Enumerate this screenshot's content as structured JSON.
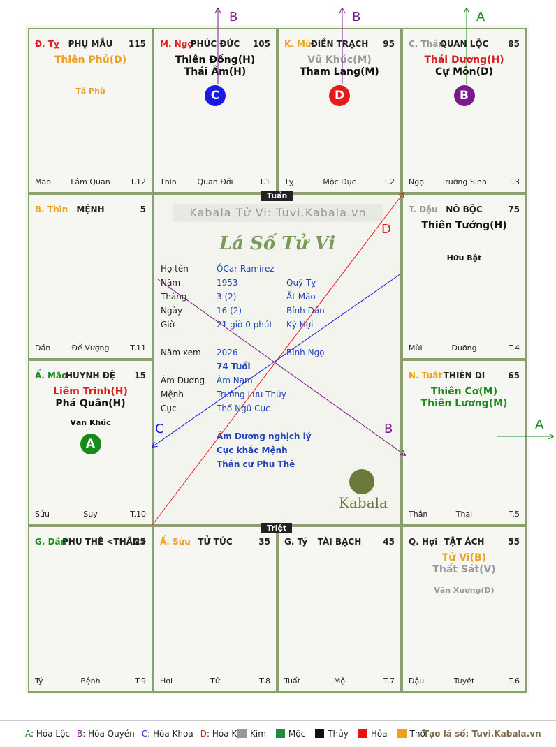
{
  "palaces": [
    {
      "id": "ty",
      "can": "Đ. Tỵ",
      "can_color": "#d81f1f",
      "name": "PHỤ MẪU",
      "num": "115",
      "stars": [
        {
          "t": "Thiên Phủ(D)",
          "c": "#f0a020"
        }
      ],
      "minors": [
        {
          "t": "Tả Phù",
          "c": "#f0a020"
        }
      ],
      "foot": [
        "Mão",
        "Lâm Quan",
        "T.12"
      ]
    },
    {
      "id": "ngo",
      "can": "M. Ngọ",
      "can_color": "#d81f1f",
      "name": "PHÚC ĐỨC",
      "num": "105",
      "stars": [
        {
          "t": "Thiên Đồng(H)",
          "c": "#111"
        },
        {
          "t": "Thái Âm(H)",
          "c": "#111"
        }
      ],
      "minors": [],
      "badge": {
        "t": "C",
        "c": "#1a1ae6"
      },
      "foot": [
        "Thìn",
        "Quan Đới",
        "T.1"
      ]
    },
    {
      "id": "mui",
      "can": "K. Mùi",
      "can_color": "#f0a020",
      "name": "ĐIỀN TRẠCH",
      "num": "95",
      "stars": [
        {
          "t": "Vũ Khúc(M)",
          "c": "#999"
        },
        {
          "t": "Tham Lang(M)",
          "c": "#111"
        }
      ],
      "minors": [],
      "badge": {
        "t": "D",
        "c": "#e61a1a"
      },
      "foot": [
        "Tỵ",
        "Mộc Dục",
        "T.2"
      ]
    },
    {
      "id": "than",
      "can": "C. Thân",
      "can_color": "#999",
      "name": "QUAN LỘC",
      "num": "85",
      "stars": [
        {
          "t": "Thái Dương(H)",
          "c": "#d81f1f"
        },
        {
          "t": "Cự Môn(D)",
          "c": "#111"
        }
      ],
      "minors": [],
      "badge": {
        "t": "B",
        "c": "#7a1a8a"
      },
      "foot": [
        "Ngọ",
        "Trường Sinh",
        "T.3"
      ]
    },
    {
      "id": "thin",
      "can": "B. Thìn",
      "can_color": "#f0a020",
      "name": "MỆNH",
      "num": "5",
      "stars": [],
      "minors": [],
      "foot": [
        "Dần",
        "Đế Vượng",
        "T.11"
      ]
    },
    {
      "id": "dau",
      "can": "T. Dậu",
      "can_color": "#999",
      "name": "NÔ BỘC",
      "num": "75",
      "stars": [
        {
          "t": "Thiên Tướng(H)",
          "c": "#111"
        }
      ],
      "minors": [
        {
          "t": "Hữu Bật",
          "c": "#111"
        }
      ],
      "foot": [
        "Mùi",
        "Dưỡng",
        "T.4"
      ]
    },
    {
      "id": "mao",
      "can": "Ấ. Mão",
      "can_color": "#1f8a1f",
      "name": "HUYNH ĐỆ",
      "num": "15",
      "stars": [
        {
          "t": "Liêm Trinh(H)",
          "c": "#d81f1f"
        },
        {
          "t": "Phá Quân(H)",
          "c": "#111"
        }
      ],
      "minors": [
        {
          "t": "Văn Khúc",
          "c": "#111"
        }
      ],
      "badge": {
        "t": "A",
        "c": "#1a8a1a"
      },
      "foot": [
        "Sửu",
        "Suy",
        "T.10"
      ]
    },
    {
      "id": "tuat",
      "can": "N. Tuất",
      "can_color": "#f0a020",
      "name": "THIÊN DI",
      "num": "65",
      "stars": [
        {
          "t": "Thiên Cơ(M)",
          "c": "#1f8a1f"
        },
        {
          "t": "Thiên Lương(M)",
          "c": "#1f8a1f"
        }
      ],
      "minors": [],
      "foot": [
        "Thân",
        "Thai",
        "T.5"
      ]
    },
    {
      "id": "dan",
      "can": "G. Dần",
      "can_color": "#1f8a1f",
      "name": "PHU THÊ <THÂN>",
      "num": "25",
      "stars": [],
      "minors": [],
      "foot": [
        "Tý",
        "Bệnh",
        "T.9"
      ]
    },
    {
      "id": "suu",
      "can": "Ấ. Sửu",
      "can_color": "#f0a020",
      "name": "TỬ TỨC",
      "num": "35",
      "stars": [],
      "minors": [],
      "foot": [
        "Hợi",
        "Tử",
        "T.8"
      ]
    },
    {
      "id": "tys",
      "can": "G. Tý",
      "can_color": "#222",
      "name": "TÀI BẠCH",
      "num": "45",
      "stars": [],
      "minors": [],
      "foot": [
        "Tuất",
        "Mộ",
        "T.7"
      ]
    },
    {
      "id": "hoi",
      "can": "Q. Hợi",
      "can_color": "#222",
      "name": "TẬT ÁCH",
      "num": "55",
      "stars": [
        {
          "t": "Tử Vi(B)",
          "c": "#f0a020"
        },
        {
          "t": "Thất Sát(V)",
          "c": "#999"
        }
      ],
      "minors": [
        {
          "t": "Văn Xương(D)",
          "c": "#999"
        }
      ],
      "foot": [
        "Dậu",
        "Tuyệt",
        "T.6"
      ]
    }
  ],
  "center": {
    "site": "Kabala Tử Vi: Tuvi.Kabala.vn",
    "title": "Lá Số Tử Vi",
    "rows": [
      [
        "Họ tên",
        "ÓCar Ramírez",
        ""
      ],
      [
        "Năm",
        "1953",
        "Quý Tỵ"
      ],
      [
        "Tháng",
        "3  (2)",
        "Ất Mão"
      ],
      [
        "Ngày",
        "16  (2)",
        "Bính Dần"
      ],
      [
        "Giờ",
        "21 giờ 0 phút",
        "Kỷ Hợi"
      ],
      [
        "Năm xem",
        "2026",
        "Bính Ngọ"
      ]
    ],
    "age": "74 Tuổi",
    "rows2": [
      [
        "Âm Dương",
        "Âm Nam"
      ],
      [
        "Mệnh",
        "Trường Lưu Thủy"
      ],
      [
        "Cục",
        "Thổ Ngũ Cục"
      ]
    ],
    "notes": [
      "Âm Dương nghịch lý",
      "Cục khắc Mệnh",
      "Thân cư Phu Thê"
    ],
    "logo": "Kabala",
    "tuan": "Tuần",
    "triet": "Triệt"
  },
  "arrows": {
    "top1": "B",
    "top2": "B",
    "top3": "A",
    "right": "A",
    "d": "D",
    "b": "B",
    "c": "C"
  },
  "legend": {
    "hoa": [
      {
        "k": "A",
        "t": ": Hóa Lộc",
        "c": "#1f8a1f"
      },
      {
        "k": "B",
        "t": ": Hóa Quyền",
        "c": "#7a1a8a"
      },
      {
        "k": "C",
        "t": ": Hóa Khoa",
        "c": "#1a1ae6"
      },
      {
        "k": "D",
        "t": ": Hóa Kị",
        "c": "#d81f1f"
      }
    ],
    "elements": [
      {
        "t": "Kim",
        "c": "#999999"
      },
      {
        "t": "Mộc",
        "c": "#1f8a3a"
      },
      {
        "t": "Thủy",
        "c": "#111111"
      },
      {
        "t": "Hỏa",
        "c": "#ee1111"
      },
      {
        "t": "Thổ",
        "c": "#f0a020"
      }
    ],
    "credit": "Tạo lá số: Tuvi.Kabala.vn"
  }
}
